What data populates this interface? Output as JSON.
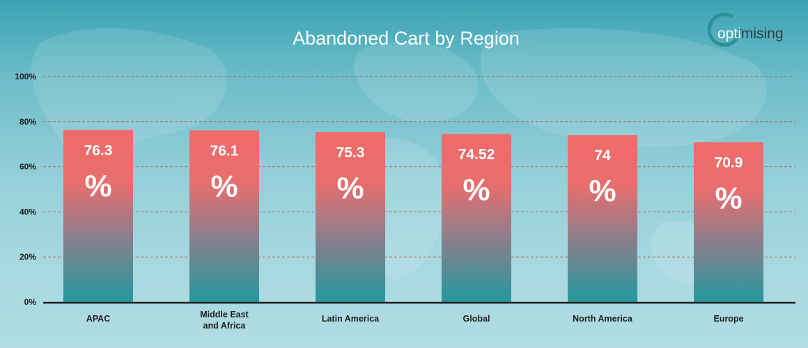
{
  "logo": {
    "part1": "opti",
    "part2": "mising"
  },
  "chart_data": {
    "type": "bar",
    "title": "Abandoned Cart by Region",
    "xlabel": "",
    "ylabel": "",
    "categories": [
      "APAC",
      "Middle East and Africa",
      "Latin America",
      "Global",
      "North America",
      "Europe"
    ],
    "category_lines": [
      [
        "APAC"
      ],
      [
        "Middle East",
        "and Africa"
      ],
      [
        "Latin America"
      ],
      [
        "Global"
      ],
      [
        "North America"
      ],
      [
        "Europe"
      ]
    ],
    "values": [
      76.3,
      76.1,
      75.3,
      74.52,
      74,
      70.9
    ],
    "value_labels": [
      "76.3",
      "76.1",
      "75.3",
      "74.52",
      "74",
      "70.9"
    ],
    "value_unit": "%",
    "ylim": [
      0,
      100
    ],
    "yticks": [
      0,
      20,
      40,
      60,
      80,
      100
    ],
    "ytick_labels": [
      "0%",
      "20%",
      "40%",
      "60%",
      "80%",
      "100%"
    ],
    "grid": true,
    "colors": {
      "bar_top": "#f06b6a",
      "bar_bottom": "#22999f",
      "grid": "#c0504d",
      "axis": "#1e1e1e"
    }
  }
}
